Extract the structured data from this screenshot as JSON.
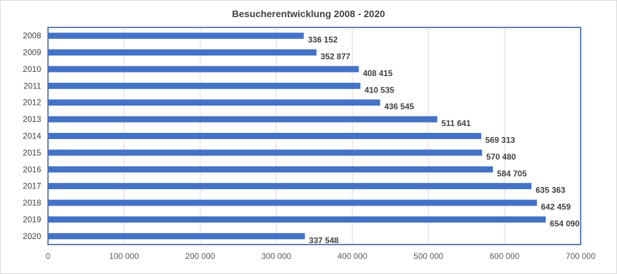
{
  "chart_data": {
    "type": "bar",
    "orientation": "horizontal",
    "title": "Besucherentwicklung 2008 - 2020",
    "xlabel": "",
    "ylabel": "",
    "categories": [
      "2008",
      "2009",
      "2010",
      "2011",
      "2012",
      "2013",
      "2014",
      "2015",
      "2016",
      "2017",
      "2018",
      "2019",
      "2020"
    ],
    "values": [
      336152,
      352877,
      408415,
      410535,
      436545,
      511641,
      569313,
      570480,
      584705,
      635363,
      642459,
      654090,
      337548
    ],
    "data_labels": [
      "336 152",
      "352 877",
      "408 415",
      "410 535",
      "436 545",
      "511 641",
      "569 313",
      "570 480",
      "584 705",
      "635 363",
      "642 459",
      "654 090",
      "337 548"
    ],
    "xlim": [
      0,
      700000
    ],
    "x_ticks": [
      0,
      100000,
      200000,
      300000,
      400000,
      500000,
      600000,
      700000
    ],
    "x_tick_labels": [
      "0",
      "100 000",
      "200 000",
      "300 000",
      "400 000",
      "500 000",
      "600 000",
      "700 000"
    ],
    "grid": "vertical",
    "legend": "none",
    "colors": {
      "bar": "#4472c4",
      "plot_border": "#2f5597",
      "grid": "#d9d9d9",
      "text": "#404040"
    }
  }
}
